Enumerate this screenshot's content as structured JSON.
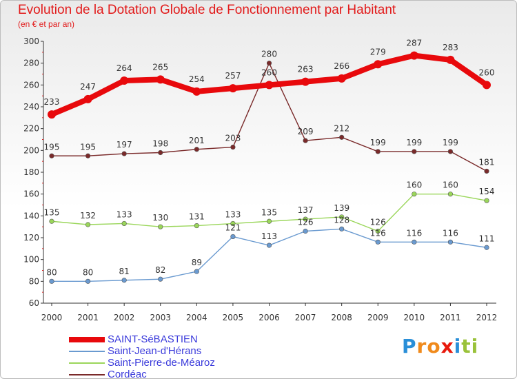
{
  "chart_data": {
    "type": "line",
    "title": "Evolution de la Dotation Globale de Fonctionnement par Habitant",
    "subtitle": "(en € et par an)",
    "x": [
      "2000",
      "2001",
      "2002",
      "2003",
      "2004",
      "2005",
      "2006",
      "2007",
      "2008",
      "2009",
      "2010",
      "2011",
      "2012"
    ],
    "ylim": [
      60,
      300
    ],
    "yticks": [
      60,
      80,
      100,
      120,
      140,
      160,
      180,
      200,
      220,
      240,
      260,
      280,
      300
    ],
    "grid": false,
    "series": [
      {
        "name": "SAINT-SéBASTIEN",
        "color": "#e8090c",
        "values": [
          233,
          247,
          264,
          265,
          254,
          257,
          260,
          263,
          266,
          279,
          287,
          283,
          260
        ]
      },
      {
        "name": "Saint-Jean-d'Hérans",
        "color": "#6a9ad0",
        "values": [
          80,
          80,
          81,
          82,
          89,
          121,
          113,
          126,
          128,
          116,
          116,
          116,
          111
        ]
      },
      {
        "name": "Saint-Pierre-de-Méaroz",
        "color": "#9ad65a",
        "values": [
          135,
          132,
          133,
          130,
          131,
          133,
          135,
          137,
          139,
          126,
          160,
          160,
          154
        ]
      },
      {
        "name": "Cordéac",
        "color": "#7a2a2a",
        "values": [
          195,
          195,
          197,
          198,
          201,
          203,
          280,
          209,
          212,
          199,
          199,
          199,
          181
        ]
      }
    ]
  },
  "logo": {
    "letters": [
      "P",
      "r",
      "o",
      "x",
      "i",
      "t",
      "i"
    ],
    "colors": [
      "#2a8fd8",
      "#f08a1c",
      "#f08a1c",
      "#e8190c",
      "#2a8fd8",
      "#9ac23a",
      "#9ac23a"
    ]
  }
}
